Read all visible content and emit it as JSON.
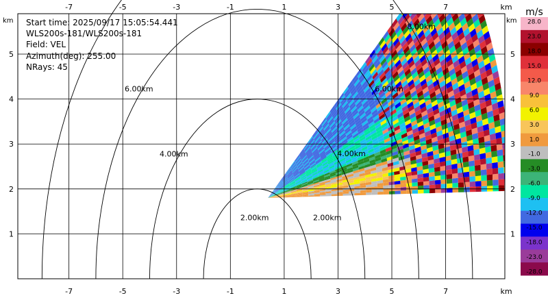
{
  "info": {
    "start_time": "Start time: 2025/09/17 15:05:54.441",
    "instrument": "WLS200s-181/WLS200s-181",
    "field": "Field: VEL",
    "azimuth": "Azimuth(deg): 255.00",
    "nrays": "NRays: 45"
  },
  "chart_data": {
    "type": "heatmap",
    "field": "VEL",
    "azimuth_deg": 255.0,
    "nrays": 45,
    "x_unit": "km",
    "y_unit": "km",
    "xlim": [
      -8.9,
      9.2
    ],
    "ylim": [
      0,
      5.9
    ],
    "x_ticks": [
      -7,
      -5,
      -3,
      -1,
      1,
      3,
      5,
      7
    ],
    "y_ticks": [
      1,
      2,
      3,
      4,
      5
    ],
    "x_ticks_top": [
      -7,
      -5,
      -3,
      -1,
      1,
      3,
      5,
      7
    ],
    "range_rings": [
      {
        "label": "2.00km",
        "radius": 2
      },
      {
        "label": "4.00km",
        "radius": 4
      },
      {
        "label": "6.00km",
        "radius": 6
      },
      {
        "label": "8.00km",
        "radius": 8
      }
    ],
    "range_labels": [
      {
        "text": "2.00km",
        "x": -0.1,
        "y": 1.3
      },
      {
        "text": "2.00km",
        "x": 2.6,
        "y": 1.3
      },
      {
        "text": "4.00km",
        "x": -3.1,
        "y": 2.72
      },
      {
        "text": "4.00km",
        "x": 3.5,
        "y": 2.73
      },
      {
        "text": "6.00km",
        "x": -4.4,
        "y": 4.17
      },
      {
        "text": "6.00km",
        "x": 4.9,
        "y": 4.17
      },
      {
        "text": "8.00km",
        "x": 6.1,
        "y": 5.56
      }
    ],
    "sector": {
      "origin_x": 0.4,
      "origin_y": 1.8,
      "elevation_deg_range": [
        1,
        40
      ],
      "max_range_km": 9
    }
  },
  "colorbar": {
    "unit": "m/s",
    "labels": [
      "28.0",
      "23.0",
      "18.0",
      "15.0",
      "12.0",
      "9.0",
      "6.0",
      "3.0",
      "1.0",
      "-1.0",
      "-3.0",
      "-6.0",
      "-9.0",
      "-12.0",
      "-15.0",
      "-18.0",
      "-23.0",
      "-28.0"
    ],
    "colors": [
      "#f7b5c9",
      "#b2122e",
      "#8b0000",
      "#e0303a",
      "#f45a4a",
      "#f8866a",
      "#f8c13a",
      "#f2f200",
      "#f8c55a",
      "#f09a3e",
      "#bebebe",
      "#258c25",
      "#3cb478",
      "#00e6a0",
      "#1ec0f2",
      "#4169e1",
      "#0000ee",
      "#7b33cc",
      "#9a3c9a",
      "#8b0a4b"
    ]
  }
}
